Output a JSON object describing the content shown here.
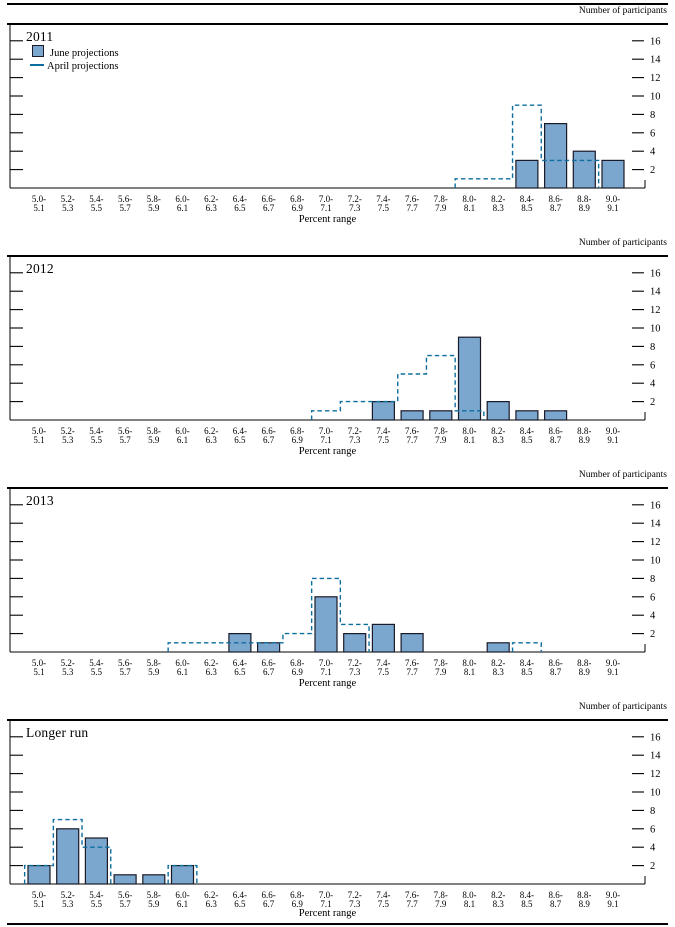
{
  "page": {
    "header_right": "Number of participants",
    "x_axis_label": "Percent range"
  },
  "colors": {
    "bar_fill": "#7BA7CE",
    "bar_stroke": "#1A1A28",
    "april_dashed": "#0D6D9E",
    "axis": "#000000"
  },
  "chart_data": [
    {
      "type": "bar",
      "title": "2011",
      "ylabel_right": "Number of participants",
      "xlabel": "Percent range",
      "ylim": [
        0,
        18
      ],
      "yticks": [
        2,
        4,
        6,
        8,
        10,
        12,
        14,
        16
      ],
      "legend_visible": true,
      "categories": [
        "5.0-5.1",
        "5.2-5.3",
        "5.4-5.5",
        "5.6-5.7",
        "5.8-5.9",
        "6.0-6.1",
        "6.2-6.3",
        "6.4-6.5",
        "6.6-6.7",
        "6.8-6.9",
        "7.0-7.1",
        "7.2-7.3",
        "7.4-7.5",
        "7.6-7.7",
        "7.8-7.9",
        "8.0-8.1",
        "8.2-8.3",
        "8.4-8.5",
        "8.6-8.7",
        "8.8-8.9",
        "9.0-9.1"
      ],
      "series": [
        {
          "name": "June projections",
          "style": "bar",
          "values": [
            0,
            0,
            0,
            0,
            0,
            0,
            0,
            0,
            0,
            0,
            0,
            0,
            0,
            0,
            0,
            0,
            0,
            3,
            7,
            4,
            3
          ]
        },
        {
          "name": "April projections",
          "style": "dashed-outline",
          "values": [
            0,
            0,
            0,
            0,
            0,
            0,
            0,
            0,
            0,
            0,
            0,
            0,
            0,
            0,
            0,
            1,
            1,
            9,
            3,
            3,
            0
          ]
        }
      ]
    },
    {
      "type": "bar",
      "title": "2012",
      "ylabel_right": "Number of participants",
      "xlabel": "Percent range",
      "ylim": [
        0,
        18
      ],
      "yticks": [
        2,
        4,
        6,
        8,
        10,
        12,
        14,
        16
      ],
      "legend_visible": false,
      "categories": [
        "5.0-5.1",
        "5.2-5.3",
        "5.4-5.5",
        "5.6-5.7",
        "5.8-5.9",
        "6.0-6.1",
        "6.2-6.3",
        "6.4-6.5",
        "6.6-6.7",
        "6.8-6.9",
        "7.0-7.1",
        "7.2-7.3",
        "7.4-7.5",
        "7.6-7.7",
        "7.8-7.9",
        "8.0-8.1",
        "8.2-8.3",
        "8.4-8.5",
        "8.6-8.7",
        "8.8-8.9",
        "9.0-9.1"
      ],
      "series": [
        {
          "name": "June projections",
          "style": "bar",
          "values": [
            0,
            0,
            0,
            0,
            0,
            0,
            0,
            0,
            0,
            0,
            0,
            0,
            2,
            1,
            1,
            9,
            2,
            1,
            1,
            0,
            0
          ]
        },
        {
          "name": "April projections",
          "style": "dashed-outline",
          "values": [
            0,
            0,
            0,
            0,
            0,
            0,
            0,
            0,
            0,
            0,
            1,
            2,
            2,
            5,
            7,
            1,
            0,
            0,
            0,
            0,
            0
          ]
        }
      ]
    },
    {
      "type": "bar",
      "title": "2013",
      "ylabel_right": "Number of participants",
      "xlabel": "Percent range",
      "ylim": [
        0,
        18
      ],
      "yticks": [
        2,
        4,
        6,
        8,
        10,
        12,
        14,
        16
      ],
      "legend_visible": false,
      "categories": [
        "5.0-5.1",
        "5.2-5.3",
        "5.4-5.5",
        "5.6-5.7",
        "5.8-5.9",
        "6.0-6.1",
        "6.2-6.3",
        "6.4-6.5",
        "6.6-6.7",
        "6.8-6.9",
        "7.0-7.1",
        "7.2-7.3",
        "7.4-7.5",
        "7.6-7.7",
        "7.8-7.9",
        "8.0-8.1",
        "8.2-8.3",
        "8.4-8.5",
        "8.6-8.7",
        "8.8-8.9",
        "9.0-9.1"
      ],
      "series": [
        {
          "name": "June projections",
          "style": "bar",
          "values": [
            0,
            0,
            0,
            0,
            0,
            0,
            0,
            2,
            1,
            0,
            6,
            2,
            3,
            2,
            0,
            0,
            1,
            0,
            0,
            0,
            0
          ]
        },
        {
          "name": "April projections",
          "style": "dashed-outline",
          "values": [
            0,
            0,
            0,
            0,
            0,
            1,
            1,
            1,
            1,
            2,
            8,
            3,
            0,
            0,
            0,
            0,
            0,
            1,
            0,
            0,
            0
          ]
        }
      ]
    },
    {
      "type": "bar",
      "title": "Longer run",
      "ylabel_right": "Number of participants",
      "xlabel": "Percent range",
      "ylim": [
        0,
        18
      ],
      "yticks": [
        2,
        4,
        6,
        8,
        10,
        12,
        14,
        16
      ],
      "legend_visible": false,
      "categories": [
        "5.0-5.1",
        "5.2-5.3",
        "5.4-5.5",
        "5.6-5.7",
        "5.8-5.9",
        "6.0-6.1",
        "6.2-6.3",
        "6.4-6.5",
        "6.6-6.7",
        "6.8-6.9",
        "7.0-7.1",
        "7.2-7.3",
        "7.4-7.5",
        "7.6-7.7",
        "7.8-7.9",
        "8.0-8.1",
        "8.2-8.3",
        "8.4-8.5",
        "8.6-8.7",
        "8.8-8.9",
        "9.0-9.1"
      ],
      "series": [
        {
          "name": "June projections",
          "style": "bar",
          "values": [
            2,
            6,
            5,
            1,
            1,
            2,
            0,
            0,
            0,
            0,
            0,
            0,
            0,
            0,
            0,
            0,
            0,
            0,
            0,
            0,
            0
          ]
        },
        {
          "name": "April projections",
          "style": "dashed-outline",
          "values": [
            2,
            7,
            4,
            0,
            0,
            2,
            0,
            0,
            0,
            0,
            0,
            0,
            0,
            0,
            0,
            0,
            0,
            0,
            0,
            0,
            0
          ]
        }
      ]
    }
  ]
}
